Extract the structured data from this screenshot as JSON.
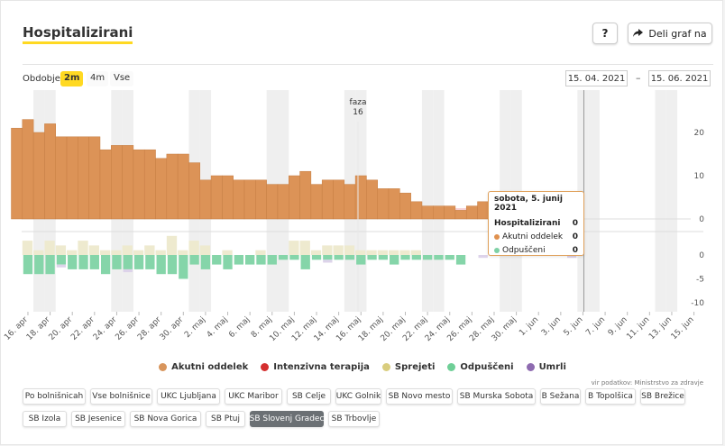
{
  "header": {
    "title": "Hospitalizirani",
    "help_label": "?",
    "share_label": "Deli graf na"
  },
  "period": {
    "label": "Obdobje",
    "options": [
      "2m",
      "4m",
      "Vse"
    ],
    "active": "2m",
    "date_from": "15. 04. 2021",
    "date_sep": "–",
    "date_to": "15. 06. 2021"
  },
  "annotation": {
    "line1": "faza",
    "line2": "16"
  },
  "tooltip": {
    "date": "sobota, 5. junij 2021",
    "rows": [
      {
        "label": "Hospitalizirani",
        "value": "0",
        "color": ""
      },
      {
        "label": "Akutni oddelek",
        "value": "0",
        "color": "#e0914f"
      },
      {
        "label": "Odpuščeni",
        "value": "0",
        "color": "#7fd1a6"
      }
    ]
  },
  "legend": [
    {
      "label": "Akutni oddelek",
      "color": "#d8955c"
    },
    {
      "label": "Intenzivna terapija",
      "color": "#d42f2f"
    },
    {
      "label": "Sprejeti",
      "color": "#d9cd7e"
    },
    {
      "label": "Odpuščeni",
      "color": "#6fcf97"
    },
    {
      "label": "Umrli",
      "color": "#8e6bb0"
    }
  ],
  "source": "vir podatkov: Ministrstvo za zdravje",
  "hospitals": [
    "Po bolnišnicah",
    "Vse bolnišnice",
    "UKC Ljubljana",
    "UKC Maribor",
    "SB Celje",
    "UKC Golnik",
    "SB Novo mesto",
    "SB Murska Sobota",
    "B Sežana",
    "B Topolšica",
    "SB Brežice",
    "SB Izola",
    "SB Jesenice",
    "SB Nova Gorica",
    "SB Ptuj",
    "SB Slovenj Gradec",
    "SB Trbovlje"
  ],
  "hospital_active": "SB Slovenj Gradec",
  "chart_data": [
    {
      "type": "bar",
      "stacked": true,
      "x": [
        "15. apr",
        "16. apr",
        "17. apr",
        "18. apr",
        "19. apr",
        "20. apr",
        "21. apr",
        "22. apr",
        "23. apr",
        "24. apr",
        "25. apr",
        "26. apr",
        "27. apr",
        "28. apr",
        "29. apr",
        "30. apr",
        "1. maj",
        "2. maj",
        "3. maj",
        "4. maj",
        "5. maj",
        "6. maj",
        "7. maj",
        "8. maj",
        "9. maj",
        "10. maj",
        "11. maj",
        "12. maj",
        "13. maj",
        "14. maj",
        "15. maj",
        "16. maj",
        "17. maj",
        "18. maj",
        "19. maj",
        "20. maj",
        "21. maj",
        "22. maj",
        "23. maj",
        "24. maj",
        "25. maj",
        "26. maj",
        "27. maj",
        "28. maj",
        "29. maj",
        "30. maj",
        "31. maj",
        "1. jun",
        "2. jun",
        "3. jun",
        "4. jun",
        "5. jun",
        "6. jun",
        "7. jun",
        "8. jun",
        "9. jun",
        "10. jun",
        "11. jun",
        "12. jun",
        "13. jun",
        "14. jun",
        "15. jun"
      ],
      "series": [
        {
          "name": "Akutni oddelek",
          "values": [
            21,
            23,
            20,
            22,
            19,
            19,
            19,
            19,
            16,
            17,
            17,
            16,
            16,
            14,
            15,
            15,
            13,
            9,
            10,
            10,
            9,
            9,
            9,
            8,
            8,
            10,
            11,
            8,
            9,
            9,
            8,
            10,
            9,
            7,
            7,
            6,
            4,
            3,
            3,
            3,
            2,
            3,
            4,
            0,
            0,
            0,
            0,
            0,
            0,
            0,
            0,
            0,
            0,
            0,
            0,
            0,
            0,
            0,
            0,
            0,
            0,
            0
          ]
        },
        {
          "name": "Intenzivna terapija",
          "values": [
            0,
            0,
            0,
            0,
            0,
            0,
            0,
            0,
            0,
            0,
            0,
            0,
            0,
            0,
            0,
            0,
            0,
            0,
            0,
            0,
            0,
            0,
            0,
            0,
            0,
            0,
            0,
            0,
            0,
            0,
            0,
            0,
            0,
            0,
            0,
            0,
            0,
            0,
            0,
            0,
            0,
            0,
            0,
            0,
            0,
            0,
            0,
            0,
            0,
            0,
            0,
            0,
            0,
            0,
            0,
            0,
            0,
            0,
            0,
            0,
            0,
            0
          ]
        }
      ],
      "yticks": [
        0,
        10,
        20
      ]
    },
    {
      "type": "bar",
      "series": [
        {
          "name": "Sprejeti",
          "values": [
            0,
            3,
            1,
            3,
            2,
            1,
            3,
            2,
            1,
            1,
            2,
            1,
            2,
            1,
            4,
            1,
            3,
            2,
            0,
            1,
            0,
            0,
            1,
            0,
            0,
            3,
            3,
            1,
            2,
            2,
            2,
            1,
            1,
            1,
            1,
            1,
            1,
            0,
            0,
            0,
            0,
            0,
            0,
            0,
            0,
            0,
            0,
            0,
            0,
            0,
            0,
            0,
            0,
            0,
            0,
            0,
            0,
            0,
            0,
            0,
            0,
            0
          ]
        },
        {
          "name": "Odpuščeni",
          "values": [
            0,
            -4,
            -4,
            -4,
            -2,
            -3,
            -3,
            -3,
            -4,
            -3,
            -3,
            -3,
            -3,
            -4,
            -4,
            -5,
            -2,
            -3,
            -2,
            -3,
            -2,
            -2,
            -2,
            -2,
            -1,
            -1,
            -3,
            -1,
            -1,
            -1,
            -1,
            -2,
            -1,
            -1,
            -2,
            -1,
            -1,
            -1,
            -1,
            -1,
            -2,
            0,
            0,
            0,
            0,
            0,
            0,
            0,
            0,
            0,
            0,
            0,
            0,
            0,
            0,
            0,
            0,
            0,
            0,
            0,
            0,
            0
          ]
        },
        {
          "name": "Umrli",
          "values": [
            0,
            0,
            0,
            0,
            -1,
            0,
            0,
            0,
            0,
            0,
            -1,
            0,
            0,
            0,
            0,
            0,
            0,
            0,
            0,
            0,
            0,
            0,
            0,
            0,
            0,
            0,
            0,
            0,
            -1,
            0,
            0,
            0,
            0,
            0,
            0,
            0,
            0,
            0,
            0,
            0,
            0,
            0,
            -1,
            0,
            0,
            0,
            0,
            0,
            0,
            0,
            -1,
            0,
            0,
            0,
            0,
            0,
            0,
            0,
            0,
            0,
            0,
            0
          ]
        }
      ],
      "yticks": [
        0,
        -5,
        -10
      ]
    }
  ],
  "x_tick_labels": [
    "16. apr",
    "18. apr",
    "20. apr",
    "22. apr",
    "24. apr",
    "26. apr",
    "28. apr",
    "30. apr",
    "2. maj",
    "4. maj",
    "6. maj",
    "8. maj",
    "10. maj",
    "12. maj",
    "14. maj",
    "16. maj",
    "18. maj",
    "20. maj",
    "22. maj",
    "24. maj",
    "26. maj",
    "28. maj",
    "30. maj",
    "1. jun",
    "3. jun",
    "5. jun",
    "7. jun",
    "9. jun",
    "11. jun",
    "13. jun",
    "15. jun"
  ]
}
